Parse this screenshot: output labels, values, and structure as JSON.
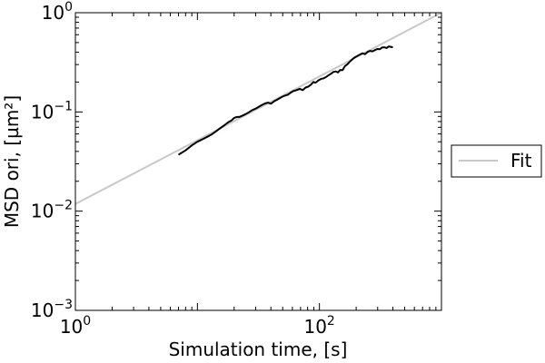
{
  "chart_data": {
    "type": "line",
    "title": "",
    "xlabel": "Simulation time, [s]",
    "ylabel": "MSD ori, [µm²]",
    "xscale": "log",
    "yscale": "log",
    "xlim": [
      1,
      1000
    ],
    "ylim": [
      0.001,
      1
    ],
    "grid": false,
    "legend": {
      "placement": "right-outside",
      "entries": [
        "Fit"
      ]
    },
    "x_ticks": [
      {
        "value": 1,
        "base": "10",
        "exp": "0"
      },
      {
        "value": 100,
        "base": "10",
        "exp": "2"
      }
    ],
    "y_ticks": [
      {
        "value": 1,
        "base": "10",
        "exp": "0"
      },
      {
        "value": 0.1,
        "base": "10",
        "exp": "−1"
      },
      {
        "value": 0.01,
        "base": "10",
        "exp": "−2"
      },
      {
        "value": 0.001,
        "base": "10",
        "exp": "−3"
      }
    ],
    "series": [
      {
        "name": "Fit",
        "color": "#c8c8c8",
        "x": [
          1,
          1000
        ],
        "y": [
          0.0118,
          1.0
        ]
      },
      {
        "color": "#000000",
        "x": [
          7,
          8,
          9,
          10,
          11,
          12,
          13,
          14,
          15,
          16,
          17,
          18,
          19,
          20,
          21,
          22,
          24,
          26,
          28,
          30,
          32,
          34,
          36,
          38,
          40,
          43,
          46,
          49,
          52,
          55,
          58,
          61,
          65,
          69,
          73,
          77,
          81,
          85,
          89,
          93,
          98,
          103,
          108,
          113,
          118,
          124,
          130,
          136,
          142,
          148,
          155,
          162,
          170,
          178,
          186,
          195,
          205,
          215,
          225,
          236,
          248,
          260,
          272,
          285,
          298,
          312,
          326,
          340,
          355,
          370,
          385,
          400
        ],
        "y": [
          0.037,
          0.041,
          0.046,
          0.05,
          0.053,
          0.056,
          0.059,
          0.063,
          0.067,
          0.071,
          0.075,
          0.079,
          0.082,
          0.087,
          0.089,
          0.089,
          0.093,
          0.098,
          0.104,
          0.108,
          0.113,
          0.118,
          0.122,
          0.124,
          0.121,
          0.129,
          0.135,
          0.141,
          0.146,
          0.149,
          0.156,
          0.162,
          0.166,
          0.171,
          0.166,
          0.176,
          0.18,
          0.188,
          0.2,
          0.197,
          0.208,
          0.215,
          0.218,
          0.224,
          0.233,
          0.242,
          0.253,
          0.256,
          0.25,
          0.265,
          0.264,
          0.29,
          0.303,
          0.322,
          0.339,
          0.355,
          0.367,
          0.379,
          0.39,
          0.382,
          0.403,
          0.412,
          0.408,
          0.42,
          0.431,
          0.428,
          0.445,
          0.448,
          0.441,
          0.457,
          0.453,
          0.448
        ]
      }
    ]
  }
}
